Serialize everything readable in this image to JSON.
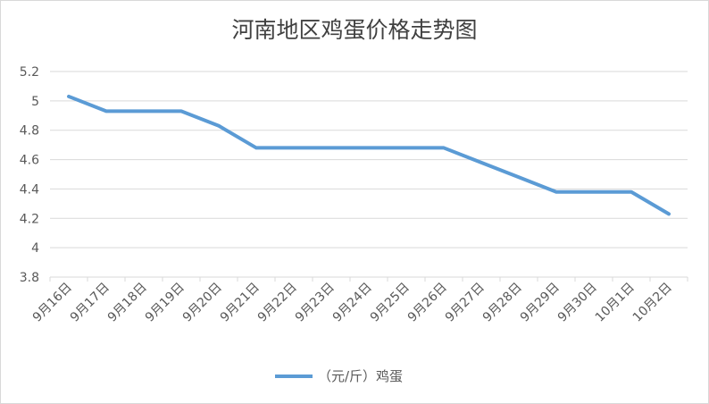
{
  "chart_data": {
    "type": "line",
    "title": "河南地区鸡蛋价格走势图",
    "categories": [
      "9月16日",
      "9月17日",
      "9月18日",
      "9月19日",
      "9月20日",
      "9月21日",
      "9月22日",
      "9月23日",
      "9月24日",
      "9月25日",
      "9月26日",
      "9月27日",
      "9月28日",
      "9月29日",
      "9月30日",
      "10月1日",
      "10月2日"
    ],
    "series": [
      {
        "name": "（元/斤）鸡蛋",
        "color": "#5b9bd5",
        "values": [
          5.03,
          4.93,
          4.93,
          4.93,
          4.83,
          4.68,
          4.68,
          4.68,
          4.68,
          4.68,
          4.68,
          4.58,
          4.48,
          4.38,
          4.38,
          4.38,
          4.23
        ]
      }
    ],
    "ylim": [
      3.8,
      5.2
    ],
    "yticks": [
      "3.8",
      "4",
      "4.2",
      "4.4",
      "4.6",
      "4.8",
      "5",
      "5.2"
    ],
    "xlabel": "",
    "ylabel": "",
    "grid": true,
    "legend": "bottom"
  }
}
